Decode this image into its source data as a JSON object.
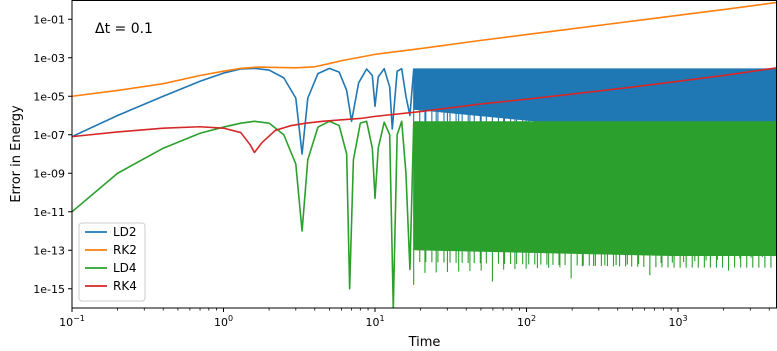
{
  "chart_data": {
    "type": "line",
    "annotation": "Δt = 0.1",
    "xlabel": "Time",
    "ylabel": "Error in Energy",
    "xscale": "log",
    "yscale": "log",
    "xlim": [
      0.1,
      4500
    ],
    "ylim": [
      1e-16,
      1
    ],
    "grid": false,
    "legend_position": "lower-left",
    "x_ticks": [
      {
        "value": 0.1,
        "label": "10−1"
      },
      {
        "value": 1,
        "label": "100"
      },
      {
        "value": 10,
        "label": "101"
      },
      {
        "value": 100,
        "label": "102"
      },
      {
        "value": 1000,
        "label": "103"
      }
    ],
    "y_ticks": [
      {
        "value": 0.1,
        "label": "1e-01"
      },
      {
        "value": 0.001,
        "label": "1e-03"
      },
      {
        "value": 1e-05,
        "label": "1e-05"
      },
      {
        "value": 1e-07,
        "label": "1e-07"
      },
      {
        "value": 1e-09,
        "label": "1e-09"
      },
      {
        "value": 1e-11,
        "label": "1e-11"
      },
      {
        "value": 1e-13,
        "label": "1e-13"
      },
      {
        "value": 1e-15,
        "label": "1e-15"
      }
    ],
    "series": [
      {
        "name": "LD2",
        "color": "#1f77b4",
        "x": [
          0.1,
          0.2,
          0.4,
          0.7,
          1.0,
          1.3,
          1.6,
          2.0,
          2.5,
          3.0,
          3.3,
          3.6,
          4.2,
          5.0,
          5.8,
          6.5,
          7.0,
          7.8,
          8.8,
          9.6,
          10.0,
          10.5,
          11.5,
          12.5,
          13.0,
          14,
          15,
          16,
          17,
          18
        ],
        "y": [
          8e-08,
          1e-06,
          1e-05,
          6e-05,
          0.00016,
          0.00026,
          0.00028,
          0.00023,
          9e-05,
          8e-06,
          1e-08,
          8e-06,
          0.00015,
          0.00028,
          0.00018,
          2e-05,
          5e-07,
          5e-05,
          0.00026,
          0.00012,
          3e-06,
          0.0001,
          0.00027,
          3e-05,
          2e-07,
          0.0002,
          0.00027,
          1e-05,
          1e-06,
          0.00025
        ],
        "band": {
          "x_start": 18,
          "x_end": 4500,
          "upper": 0.00028,
          "lower": 2e-06,
          "lower_end": 1e-07
        }
      },
      {
        "name": "RK2",
        "color": "#ff7f0e",
        "x": [
          0.1,
          0.2,
          0.4,
          0.7,
          1.0,
          1.3,
          1.7,
          2.0,
          3.0,
          4.0,
          5.0,
          6.0,
          10,
          20,
          50,
          100,
          200,
          500,
          1000,
          2000,
          4500
        ],
        "y": [
          1e-05,
          2e-05,
          4.5e-05,
          0.00012,
          0.0002,
          0.00028,
          0.00033,
          0.00032,
          0.0003,
          0.00034,
          0.0005,
          0.0007,
          0.0015,
          0.003,
          0.008,
          0.016,
          0.032,
          0.08,
          0.16,
          0.32,
          0.75
        ]
      },
      {
        "name": "LD4",
        "color": "#2ca02c",
        "x": [
          0.1,
          0.2,
          0.4,
          0.7,
          1.0,
          1.3,
          1.6,
          2.0,
          2.5,
          3.0,
          3.3,
          3.6,
          4.2,
          5.0,
          5.8,
          6.5,
          6.8,
          7.2,
          8.0,
          8.8,
          9.6,
          10.0,
          10.5,
          11.5,
          12.5,
          13.2,
          14,
          15,
          16,
          17,
          18
        ],
        "y": [
          1e-11,
          1e-09,
          2e-08,
          1.2e-07,
          2.5e-07,
          4e-07,
          5e-07,
          4e-07,
          1e-07,
          3e-09,
          1e-12,
          5e-09,
          2.5e-07,
          5e-07,
          3e-07,
          1e-08,
          1e-15,
          5e-09,
          4e-07,
          5e-07,
          2e-08,
          5e-11,
          2e-08,
          4.5e-07,
          1e-07,
          1e-16,
          1e-07,
          5e-07,
          1e-09,
          1e-14,
          4e-07
        ],
        "band": {
          "x_start": 18,
          "x_end": 4500,
          "upper": 5e-07,
          "lower": 1e-13,
          "lower_end": 5e-14
        }
      },
      {
        "name": "RK4",
        "color": "#d62728",
        "x": [
          0.1,
          0.2,
          0.4,
          0.7,
          1.0,
          1.3,
          1.5,
          1.6,
          1.8,
          2.2,
          2.8,
          3.5,
          4.5,
          6.0,
          8.0,
          10,
          20,
          50,
          100,
          200,
          500,
          1000,
          2000,
          4500
        ],
        "y": [
          8e-08,
          1.4e-07,
          2.2e-07,
          2.6e-07,
          2.2e-07,
          1.3e-07,
          3e-08,
          1.2e-08,
          4e-08,
          1.7e-07,
          3e-07,
          4e-07,
          5e-07,
          6e-07,
          7e-07,
          9e-07,
          1.6e-06,
          4e-06,
          7e-06,
          1.3e-05,
          3e-05,
          6e-05,
          0.00012,
          0.0003
        ]
      }
    ]
  }
}
